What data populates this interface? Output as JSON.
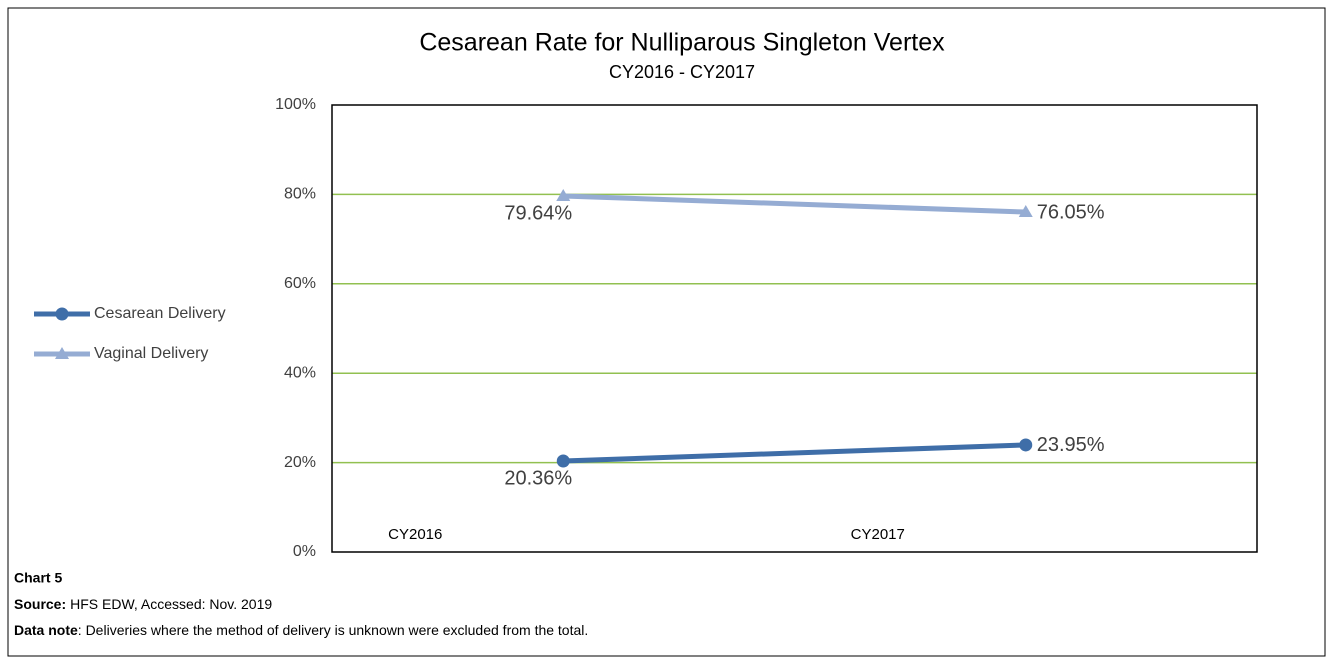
{
  "chart_data": {
    "type": "line",
    "title": "Cesarean Rate for Nulliparous Singleton Vertex",
    "subtitle": "CY2016 - CY2017",
    "categories": [
      "CY2016",
      "CY2017"
    ],
    "series": [
      {
        "name": "Cesarean Delivery",
        "color": "#3f6ea8",
        "marker": "circle",
        "values": [
          20.36,
          23.95
        ],
        "value_labels": [
          "20.36%",
          "23.95%"
        ]
      },
      {
        "name": "Vaginal Delivery",
        "color": "#95acd3",
        "marker": "triangle",
        "values": [
          79.64,
          76.05
        ],
        "value_labels": [
          "79.64%",
          "76.05%"
        ]
      }
    ],
    "ylim": [
      0,
      100
    ],
    "yticks": [
      {
        "value": 0,
        "label": "0%"
      },
      {
        "value": 20,
        "label": "20%"
      },
      {
        "value": 40,
        "label": "40%"
      },
      {
        "value": 60,
        "label": "60%"
      },
      {
        "value": 80,
        "label": "80%"
      },
      {
        "value": 100,
        "label": "100%"
      }
    ],
    "grid": true,
    "grid_color": "#92c050",
    "legend": "left"
  },
  "footer": {
    "chart_label": "Chart 5",
    "source_label": "Source:",
    "source": "HFS EDW, Accessed: Nov. 2019",
    "note_label": "Data note",
    "note": ": Deliveries where the method of delivery is unknown were excluded from the total."
  }
}
